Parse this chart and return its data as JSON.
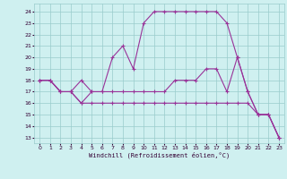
{
  "xlabel": "Windchill (Refroidissement éolien,°C)",
  "bg_color": "#cff0f0",
  "grid_color": "#99cccc",
  "line_color": "#993399",
  "xlim": [
    -0.5,
    23.5
  ],
  "ylim": [
    12.5,
    24.7
  ],
  "xticks": [
    0,
    1,
    2,
    3,
    4,
    5,
    6,
    7,
    8,
    9,
    10,
    11,
    12,
    13,
    14,
    15,
    16,
    17,
    18,
    19,
    20,
    21,
    22,
    23
  ],
  "yticks": [
    13,
    14,
    15,
    16,
    17,
    18,
    19,
    20,
    21,
    22,
    23,
    24
  ],
  "series1_x": [
    0,
    1,
    2,
    3,
    4,
    5,
    6,
    7,
    8,
    9,
    10,
    11,
    12,
    13,
    14,
    15,
    16,
    17,
    18,
    19,
    20,
    21,
    22,
    23
  ],
  "series1_y": [
    18,
    18,
    17,
    17,
    16,
    17,
    17,
    20,
    21,
    19,
    23,
    24,
    24,
    24,
    24,
    24,
    24,
    24,
    23,
    20,
    17,
    15,
    15,
    13
  ],
  "series2_x": [
    0,
    1,
    2,
    3,
    4,
    5,
    6,
    7,
    8,
    9,
    10,
    11,
    12,
    13,
    14,
    15,
    16,
    17,
    18,
    19,
    20,
    21,
    22,
    23
  ],
  "series2_y": [
    18,
    18,
    17,
    17,
    18,
    17,
    17,
    17,
    17,
    17,
    17,
    17,
    17,
    18,
    18,
    18,
    19,
    19,
    17,
    20,
    17,
    15,
    15,
    13
  ],
  "series3_x": [
    0,
    1,
    2,
    3,
    4,
    5,
    6,
    7,
    8,
    9,
    10,
    11,
    12,
    13,
    14,
    15,
    16,
    17,
    18,
    19,
    20,
    21,
    22,
    23
  ],
  "series3_y": [
    18,
    18,
    17,
    17,
    16,
    16,
    16,
    16,
    16,
    16,
    16,
    16,
    16,
    16,
    16,
    16,
    16,
    16,
    16,
    16,
    16,
    15,
    15,
    13
  ]
}
